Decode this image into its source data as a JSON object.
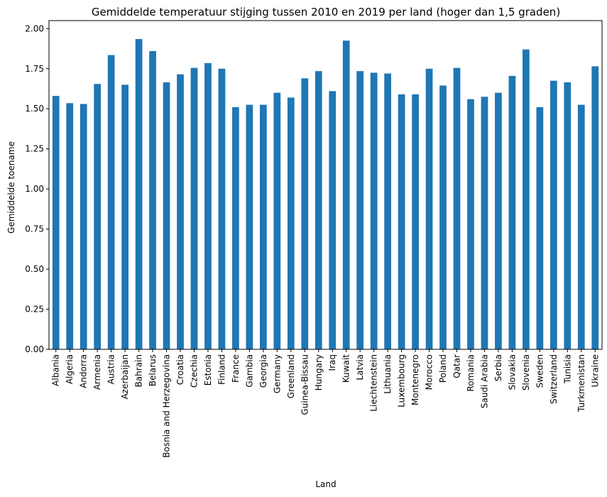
{
  "chart_data": {
    "type": "bar",
    "title": "Gemiddelde temperatuur stijging tussen 2010 en 2019 per land (hoger dan 1,5 graden)",
    "xlabel": "Land",
    "ylabel": "Gemiddelde toename",
    "ylim": [
      0,
      2.05
    ],
    "yticks": [
      "0.00",
      "0.25",
      "0.50",
      "0.75",
      "1.00",
      "1.25",
      "1.50",
      "1.75",
      "2.00"
    ],
    "grid": false,
    "bar_color": "#1f77b4",
    "categories": [
      "Albania",
      "Algeria",
      "Andorra",
      "Armenia",
      "Austria",
      "Azerbaijan",
      "Bahrain",
      "Belarus",
      "Bosnia and Herzegovina",
      "Croatia",
      "Czechia",
      "Estonia",
      "Finland",
      "France",
      "Gambia",
      "Georgia",
      "Germany",
      "Greenland",
      "Guinea-Bissau",
      "Hungary",
      "Iraq",
      "Kuwait",
      "Latvia",
      "Liechtenstein",
      "Lithuania",
      "Luxembourg",
      "Montenegro",
      "Morocco",
      "Poland",
      "Qatar",
      "Romania",
      "Saudi Arabia",
      "Serbia",
      "Slovakia",
      "Slovenia",
      "Sweden",
      "Switzerland",
      "Tunisia",
      "Turkmenistan",
      "Ukraine"
    ],
    "values": [
      1.58,
      1.535,
      1.53,
      1.655,
      1.835,
      1.65,
      1.935,
      1.86,
      1.665,
      1.715,
      1.755,
      1.785,
      1.75,
      1.51,
      1.525,
      1.525,
      1.6,
      1.57,
      1.69,
      1.735,
      1.61,
      1.925,
      1.735,
      1.725,
      1.72,
      1.59,
      1.59,
      1.75,
      1.645,
      1.755,
      1.56,
      1.575,
      1.6,
      1.705,
      1.87,
      1.51,
      1.675,
      1.665,
      1.525,
      1.765
    ]
  }
}
